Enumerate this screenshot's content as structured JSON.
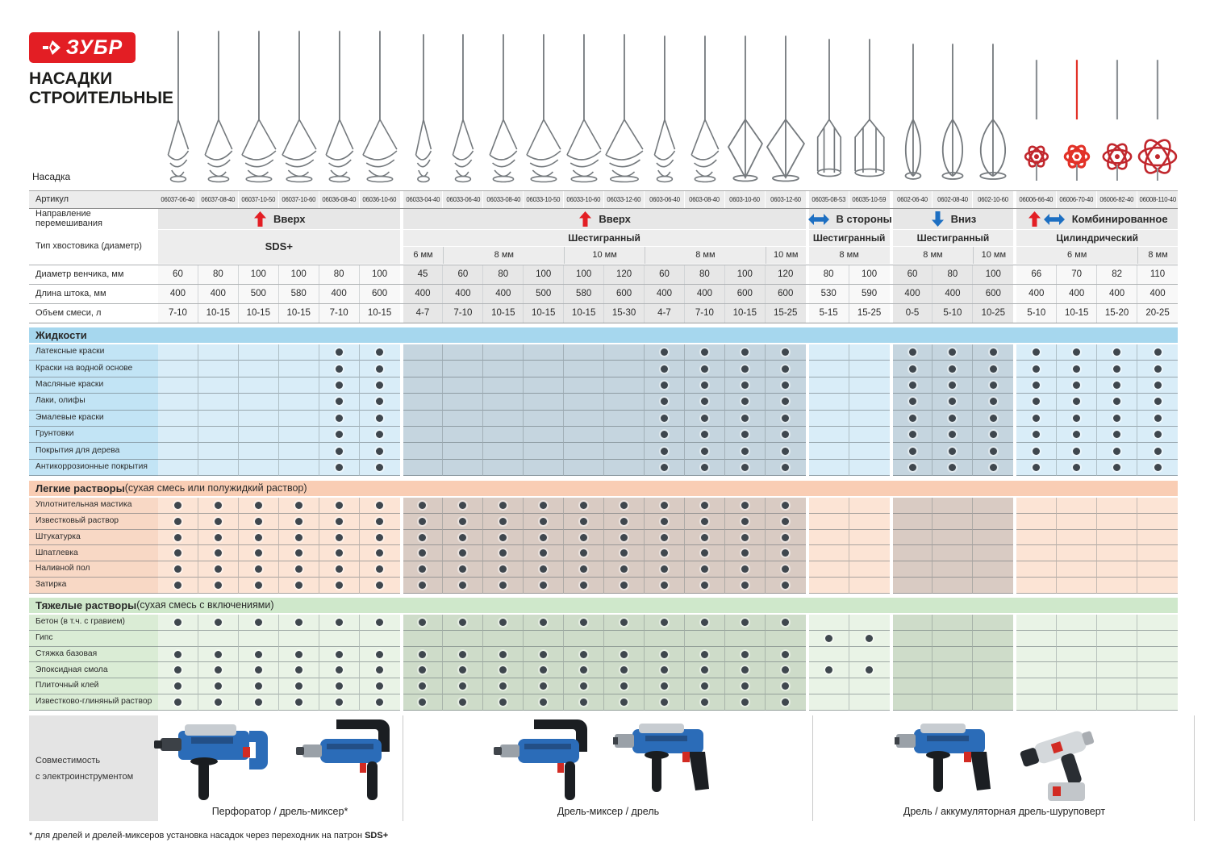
{
  "brand": {
    "logo_text": "ЗУБР",
    "title_line1": "НАСАДКИ",
    "title_line2": "СТРОИТЕЛЬНЫЕ"
  },
  "labels": {
    "nasadka": "Насадка",
    "article": "Артикул",
    "direction": "Направление перемешивания",
    "shank": "Тип хвостовика (диаметр)",
    "whisk_diameter": "Диаметр венчика, мм",
    "shaft_length": "Длина штока, мм",
    "mix_volume": "Объем смеси, л",
    "compatibility_line1": "Совместимость",
    "compatibility_line2": "с электроинструментом"
  },
  "colors": {
    "brand_red": "#e31e24",
    "arrow_red": "#e31e24",
    "arrow_blue": "#1d6fc2",
    "dot": "#3f474e",
    "header_cell": "#ececec",
    "direction_cell": "#e7e7e7",
    "type_cell": "#ededed",
    "num_light": "#f8f8f8",
    "num_dark": "#e7e7e7",
    "steel": "#74797d",
    "red_mixer": "#c1272d",
    "red_mixer_bright": "#e23127",
    "sections": {
      "liquids": {
        "band": "#a6d7ee",
        "label": "#c2e4f5",
        "light": "#d9edf8",
        "dark": "#c5d5df"
      },
      "light_mortars": {
        "band": "#f9cdb4",
        "label": "#f8d8c5",
        "light": "#fce4d5",
        "dark": "#d9cbc3"
      },
      "heavy_mortars": {
        "band": "#cfe8cb",
        "label": "#daecd5",
        "light": "#e9f3e6",
        "dark": "#cedcc9"
      }
    }
  },
  "columns": {
    "articles": [
      "06037-06-40",
      "06037-08-40",
      "06037-10-50",
      "06037-10-60",
      "06036-08-40",
      "06036-10-60",
      "06033-04-40",
      "06033-06-40",
      "06033-08-40",
      "06033-10-50",
      "06033-10-60",
      "06033-12-60",
      "0603-06-40",
      "0603-08-40",
      "0603-10-60",
      "0603-12-60",
      "06035-08-53",
      "06035-10-59",
      "0602-06-40",
      "0602-08-40",
      "0602-10-60",
      "06006-66-40",
      "06006-70-40",
      "06006-82-40",
      "06008-110-40"
    ],
    "diameters": [
      60,
      80,
      100,
      100,
      80,
      100,
      45,
      60,
      80,
      100,
      100,
      120,
      60,
      80,
      100,
      120,
      80,
      100,
      60,
      80,
      100,
      66,
      70,
      82,
      110
    ],
    "lengths": [
      400,
      400,
      500,
      580,
      400,
      600,
      400,
      400,
      400,
      500,
      580,
      600,
      400,
      400,
      600,
      600,
      530,
      590,
      400,
      400,
      600,
      400,
      400,
      400,
      400
    ],
    "volumes": [
      "7-10",
      "10-15",
      "10-15",
      "10-15",
      "7-10",
      "10-15",
      "4-7",
      "7-10",
      "10-15",
      "10-15",
      "10-15",
      "15-30",
      "4-7",
      "7-10",
      "10-15",
      "15-25",
      "5-15",
      "15-25",
      "0-5",
      "5-10",
      "10-25",
      "5-10",
      "10-15",
      "15-20",
      "20-25"
    ],
    "head_types": [
      "spiral",
      "spiral",
      "spiral",
      "spiral",
      "spiral",
      "spiral",
      "spiral",
      "spiral",
      "spiral",
      "spiral",
      "spiral",
      "spiral",
      "spiral",
      "spiral",
      "paddle",
      "paddle",
      "cage",
      "cage",
      "teardrop",
      "teardrop",
      "teardrop",
      "ball",
      "ball",
      "ball",
      "ball"
    ]
  },
  "direction_groups": [
    {
      "label": "Вверх",
      "arrows": [
        "up"
      ],
      "start": 0,
      "end": 5
    },
    {
      "label": "Вверх",
      "arrows": [
        "up"
      ],
      "start": 6,
      "end": 15
    },
    {
      "label": "В стороны",
      "arrows": [
        "lr"
      ],
      "start": 16,
      "end": 17
    },
    {
      "label": "Вниз",
      "arrows": [
        "down"
      ],
      "start": 18,
      "end": 20
    },
    {
      "label": "Комбинированное",
      "arrows": [
        "up",
        "lr"
      ],
      "start": 21,
      "end": 24
    }
  ],
  "shank_groups": [
    {
      "label": "SDS+",
      "start": 0,
      "end": 5,
      "merged": true
    },
    {
      "label": "Шестигранный",
      "start": 6,
      "end": 15,
      "merged": false
    },
    {
      "label": "Шестигранный",
      "start": 16,
      "end": 17,
      "merged": false
    },
    {
      "label": "Шестигранный",
      "start": 18,
      "end": 20,
      "merged": false
    },
    {
      "label": "Цилиндрический",
      "start": 21,
      "end": 24,
      "merged": false
    }
  ],
  "size_spans": [
    {
      "label": "6 мм",
      "start": 6,
      "end": 6
    },
    {
      "label": "8 мм",
      "start": 7,
      "end": 9
    },
    {
      "label": "10 мм",
      "start": 10,
      "end": 11
    },
    {
      "label": "8 мм",
      "start": 12,
      "end": 14
    },
    {
      "label": "10 мм",
      "start": 15,
      "end": 15
    },
    {
      "label": "8 мм",
      "start": 16,
      "end": 17
    },
    {
      "label": "8 мм",
      "start": 18,
      "end": 19
    },
    {
      "label": "10 мм",
      "start": 20,
      "end": 20
    },
    {
      "label": "6 мм",
      "start": 21,
      "end": 23
    },
    {
      "label": "8 мм",
      "start": 24,
      "end": 24
    }
  ],
  "shade_groups": [
    {
      "start": 0,
      "end": 5,
      "shade": "light"
    },
    {
      "start": 6,
      "end": 15,
      "shade": "dark"
    },
    {
      "start": 16,
      "end": 17,
      "shade": "light"
    },
    {
      "start": 18,
      "end": 20,
      "shade": "dark"
    },
    {
      "start": 21,
      "end": 24,
      "shade": "light"
    }
  ],
  "sections": [
    {
      "key": "liquids",
      "title": "Жидкости",
      "subtitle": "",
      "rows": [
        {
          "label": "Латексные краски",
          "mask": "0000110000001111001111111"
        },
        {
          "label": "Краски на водной основе",
          "mask": "0000110000001111001111111"
        },
        {
          "label": "Масляные краски",
          "mask": "0000110000001111001111111"
        },
        {
          "label": "Лаки, олифы",
          "mask": "0000110000001111001111111"
        },
        {
          "label": "Эмалевые краски",
          "mask": "0000110000001111001111111"
        },
        {
          "label": "Грунтовки",
          "mask": "0000110000001111001111111"
        },
        {
          "label": "Покрытия для дерева",
          "mask": "0000110000001111001111111"
        },
        {
          "label": "Антикоррозионные покрытия",
          "mask": "0000110000001111001111111"
        }
      ]
    },
    {
      "key": "light_mortars",
      "title": "Легкие растворы",
      "subtitle": " (сухая смесь или полужидкий раствор)",
      "rows": [
        {
          "label": "Уплотнительная мастика",
          "mask": "1111111111111111000000000"
        },
        {
          "label": "Известковый раствор",
          "mask": "1111111111111111000000000"
        },
        {
          "label": "Штукатурка",
          "mask": "1111111111111111000000000"
        },
        {
          "label": "Шпатлевка",
          "mask": "1111111111111111000000000"
        },
        {
          "label": "Наливной пол",
          "mask": "1111111111111111000000000"
        },
        {
          "label": "Затирка",
          "mask": "1111111111111111000000000"
        }
      ]
    },
    {
      "key": "heavy_mortars",
      "title": "Тяжелые растворы",
      "subtitle": " (сухая смесь с включениями)",
      "rows": [
        {
          "label": "Бетон (в т.ч. с гравием)",
          "mask": "1111111111111111000000000"
        },
        {
          "label": "Гипс",
          "mask": "0000000000000000110000000"
        },
        {
          "label": "Стяжка базовая",
          "mask": "1111111111111111000000000"
        },
        {
          "label": "Эпоксидная смола",
          "mask": "1111111111111111110000000"
        },
        {
          "label": "Плиточный клей",
          "mask": "1111111111111111000000000"
        },
        {
          "label": "Известково-глиняный раствор",
          "mask": "1111111111111111000000000"
        }
      ]
    }
  ],
  "compatibility_zones": [
    {
      "caption": "Перфоратор / дрель-миксер*",
      "tools": [
        "rotary-hammer",
        "mixer-drill"
      ]
    },
    {
      "caption": "Дрель-миксер / дрель",
      "tools": [
        "mixer-drill",
        "drill"
      ]
    },
    {
      "caption": "Дрель / аккумуляторная дрель-шуруповерт",
      "tools": [
        "drill",
        "cordless-screwdriver"
      ]
    }
  ],
  "footnote": {
    "text": "* для дрелей и дрелей-миксеров установка насадок через переходник на патрон ",
    "bold": "SDS+"
  }
}
